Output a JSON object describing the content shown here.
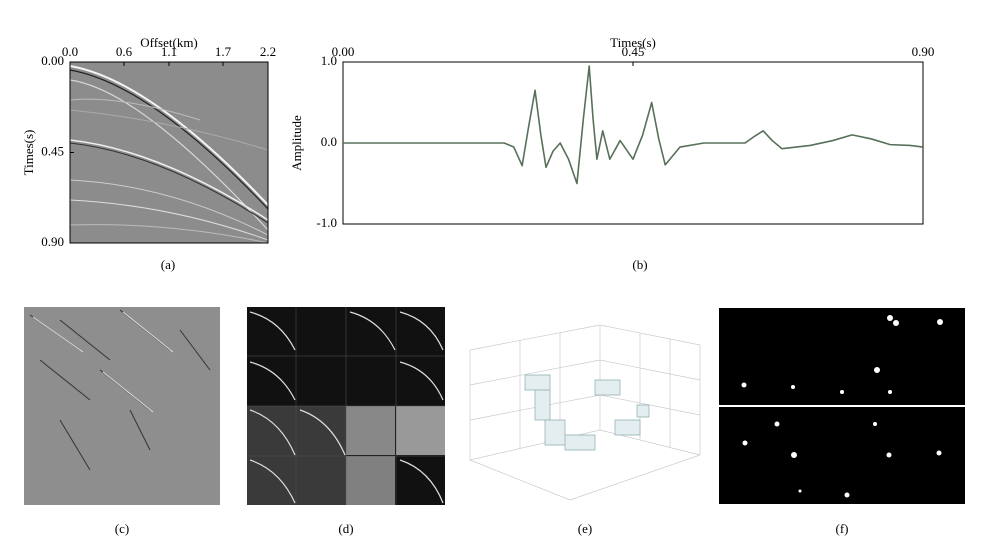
{
  "chart_data": [
    {
      "type": "image",
      "caption": "(a)",
      "xlabel": "Offset(km)",
      "ylabel": "Times(s)",
      "xlim": [
        0,
        2.2
      ],
      "xticks": [
        {
          "value": 0,
          "label": "0.0"
        },
        0.6,
        1.1,
        1.7,
        2.2
      ],
      "ylim": [
        0.9,
        0
      ],
      "yticks": [
        {
          "value": 0,
          "label": "0.00"
        },
        0.45,
        {
          "value": 0.9,
          "label": "0.90"
        }
      ]
    },
    {
      "type": "line",
      "caption": "(b)",
      "xlabel": "Times(s)",
      "ylabel": "Amplitude",
      "color": "#58705a",
      "xlim": [
        0,
        0.9
      ],
      "xticks": [
        {
          "value": 0,
          "label": "0.00"
        },
        0.45,
        {
          "value": 0.9,
          "label": "0.90"
        }
      ],
      "ylim": [
        -1,
        1
      ],
      "yticks": [
        {
          "value": 1,
          "label": "1.0"
        },
        {
          "value": 0,
          "label": "0.0"
        },
        {
          "value": -1,
          "label": "-1.0"
        }
      ],
      "x": [
        0,
        0.1,
        0.2,
        0.25,
        0.265,
        0.278,
        0.288,
        0.298,
        0.307,
        0.315,
        0.326,
        0.337,
        0.35,
        0.363,
        0.373,
        0.382,
        0.388,
        0.394,
        0.403,
        0.414,
        0.43,
        0.45,
        0.465,
        0.479,
        0.49,
        0.5,
        0.523,
        0.56,
        0.624,
        0.638,
        0.652,
        0.666,
        0.681,
        0.725,
        0.76,
        0.79,
        0.82,
        0.849,
        0.88,
        0.9
      ],
      "values": [
        0,
        0,
        0,
        0,
        -0.05,
        -0.28,
        0.2,
        0.65,
        0.1,
        -0.3,
        -0.1,
        0,
        -0.2,
        -0.5,
        0.3,
        0.95,
        0.3,
        -0.2,
        0.15,
        -0.2,
        0.03,
        -0.2,
        0.1,
        0.5,
        0.05,
        -0.27,
        -0.05,
        0,
        0,
        0.08,
        0.15,
        0.03,
        -0.07,
        -0.03,
        0.03,
        0.1,
        0.05,
        -0.02,
        -0.03,
        -0.05
      ]
    }
  ],
  "figure": {
    "captions": [
      "(c)",
      "(d)",
      "(e)",
      "(f)"
    ]
  }
}
